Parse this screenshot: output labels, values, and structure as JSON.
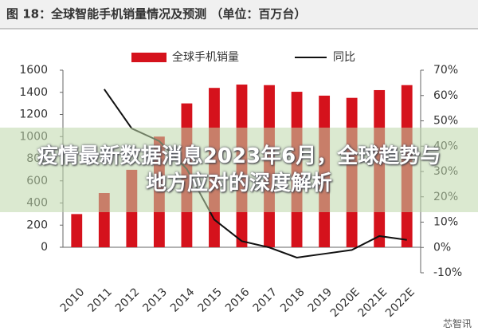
{
  "chart_data": {
    "type": "bar-line",
    "title": "图 18：全球智能手机销量情况及预测 （单位：百万台）",
    "categories": [
      "2010",
      "2011",
      "2012",
      "2013",
      "2014",
      "2015",
      "2016",
      "2017",
      "2018",
      "2019",
      "2020E",
      "2021E",
      "2022E"
    ],
    "series": [
      {
        "name": "全球手机销量",
        "color": "#d5121c",
        "values": [
          300,
          490,
          700,
          1000,
          1300,
          1440,
          1470,
          1465,
          1405,
          1370,
          1350,
          1420,
          1465
        ]
      },
      {
        "name": "同比",
        "color": "#111111",
        "axis": "y2",
        "values": [
          null,
          62.5,
          47,
          42,
          31,
          11,
          2.5,
          0,
          -4,
          -2.5,
          -1,
          4.5,
          3
        ]
      }
    ],
    "ylim": [
      0,
      1600
    ],
    "yticks": [
      0,
      200,
      400,
      600,
      800,
      1000,
      1200,
      1400,
      1600
    ],
    "y2lim": [
      -10,
      70
    ],
    "y2ticks": [
      {
        "value": -10,
        "label": "-10%"
      },
      {
        "value": 0,
        "label": "0%"
      },
      {
        "value": 10,
        "label": "10%"
      },
      {
        "value": 20,
        "label": "20%"
      },
      {
        "value": 30,
        "label": "30%"
      },
      {
        "value": 40,
        "label": "40%"
      },
      {
        "value": 50,
        "label": "50%"
      },
      {
        "value": 60,
        "label": "60%"
      },
      {
        "value": 70,
        "label": "70%"
      }
    ]
  },
  "overlay": {
    "headline": "疫情最新数据消息2023年6月，全球趋势与地方应对的深度解析",
    "watermark": "芯智讯"
  }
}
